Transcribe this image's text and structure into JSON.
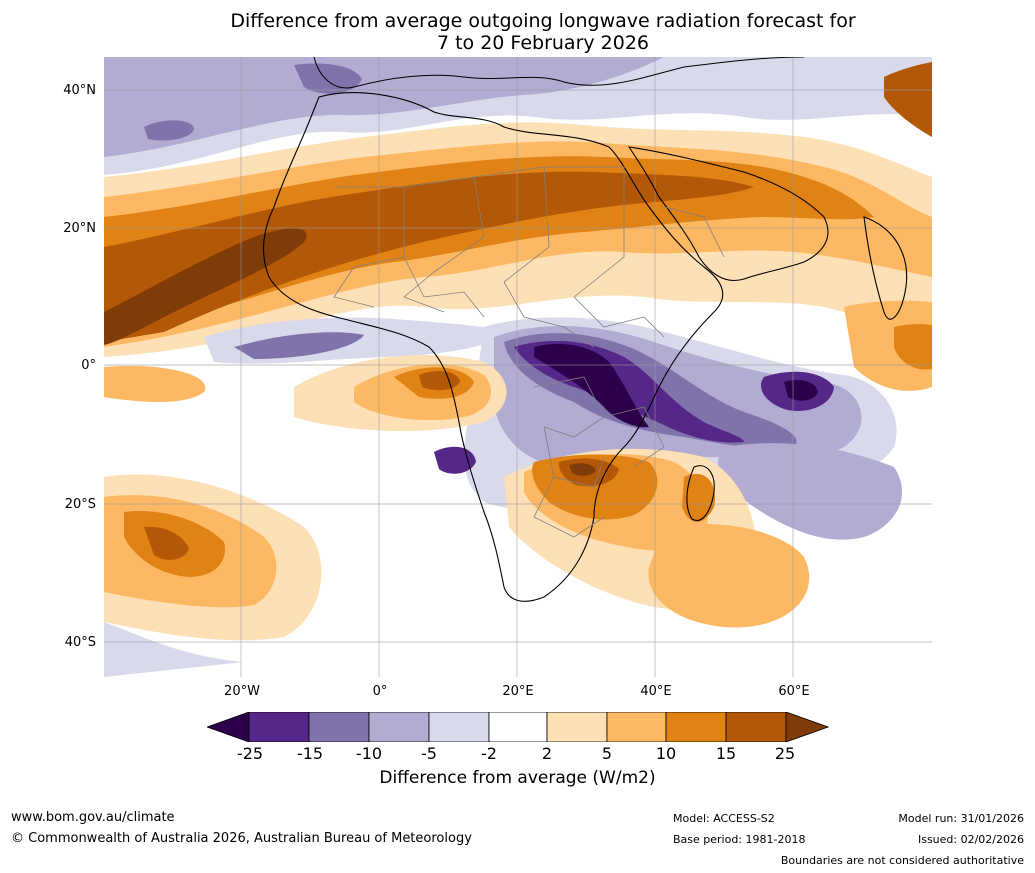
{
  "title": {
    "line1": "Difference from average outgoing longwave radiation forecast for",
    "line2": "7 to 20 February 2026"
  },
  "map": {
    "lat_labels": [
      "40°N",
      "20°N",
      "0°",
      "20°S",
      "40°S"
    ],
    "lon_labels": [
      "20°W",
      "0°",
      "20°E",
      "40°E",
      "60°E"
    ]
  },
  "colorbar": {
    "title": "Difference from average (W/m2)",
    "ticks": [
      "-25",
      "-15",
      "-10",
      "-5",
      "-2",
      "2",
      "5",
      "10",
      "15",
      "25"
    ],
    "colors": {
      "below": "#2d004b",
      "c1": "#542788",
      "c2": "#8073ac",
      "c3": "#b2abd2",
      "c4": "#d8daeb",
      "c5": "#ffffff",
      "c6": "#fee0b6",
      "c7": "#fdb863",
      "c8": "#e08214",
      "c9": "#b35806",
      "above": "#7f3b08"
    }
  },
  "footer": {
    "website": "www.bom.gov.au/climate",
    "copyright": "© Commonwealth of Australia 2026, Australian Bureau of Meteorology",
    "model": "Model: ACCESS-S2",
    "base_period": "Base period: 1981-2018",
    "model_run": "Model run: 31/01/2026",
    "issued": "Issued: 02/02/2026",
    "disclaimer": "Boundaries are not considered authoritative"
  }
}
